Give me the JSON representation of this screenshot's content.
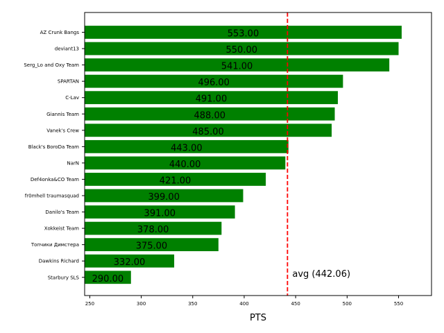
{
  "chart_data": {
    "type": "bar",
    "orientation": "horizontal",
    "title": "",
    "xlabel": "PTS",
    "ylabel": "",
    "xlim": [
      245,
      582
    ],
    "categories": [
      "AZ Crunk Bangs",
      "deviant13",
      "Serg_Lo and Oxy Team",
      "SPARTAN",
      "C-Lav",
      "Giannis Team",
      "Vanek's Crew",
      "Black's BoroDa Team",
      "NarN",
      "Def4onka&CO Team",
      "fr0mhell traumasquad",
      "Danilo's Team",
      "Xokkeist Team",
      "Топчики Димстера",
      "Dawkins Richard",
      "Starbury SLS"
    ],
    "values": [
      553,
      550,
      541,
      496,
      491,
      488,
      485,
      443,
      440,
      421,
      399,
      391,
      378,
      375,
      332,
      290
    ],
    "value_labels": [
      "553.00",
      "550.00",
      "541.00",
      "496.00",
      "491.00",
      "488.00",
      "485.00",
      "443.00",
      "440.00",
      "421.00",
      "399.00",
      "391.00",
      "378.00",
      "375.00",
      "332.00",
      "290.00"
    ],
    "x_ticks": [
      250,
      300,
      350,
      400,
      450,
      500,
      550
    ],
    "x_tick_labels": [
      "250",
      "300",
      "350",
      "400",
      "450",
      "500",
      "550"
    ],
    "bar_color": "#008000",
    "average": {
      "value": 442.06,
      "label": "avg (442.06)",
      "color": "#ff0000",
      "style": "dashed"
    },
    "grid": false,
    "legend": "none"
  }
}
